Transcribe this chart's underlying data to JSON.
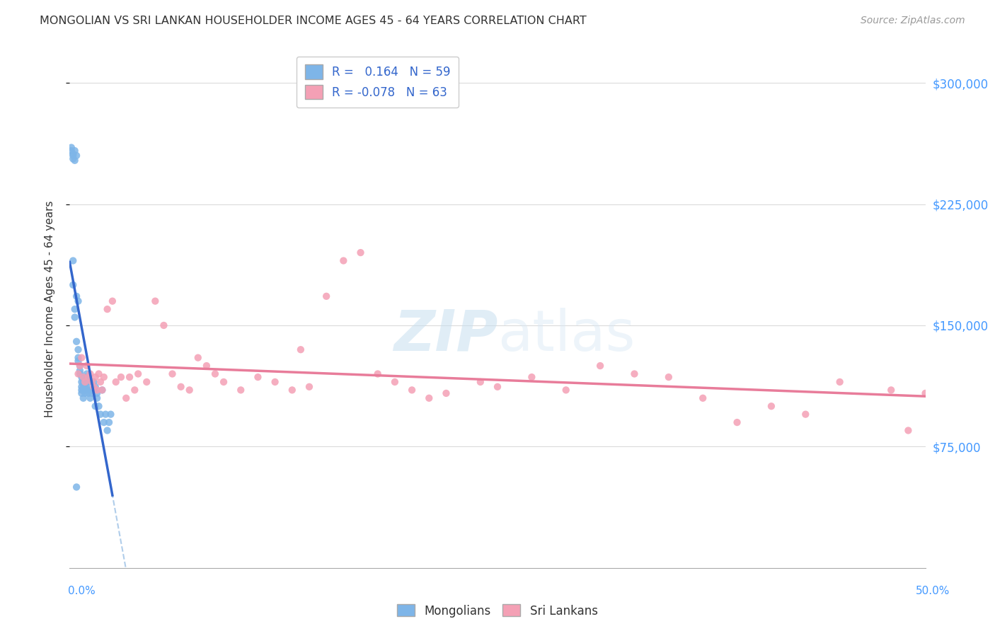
{
  "title": "MONGOLIAN VS SRI LANKAN HOUSEHOLDER INCOME AGES 45 - 64 YEARS CORRELATION CHART",
  "source": "Source: ZipAtlas.com",
  "ylabel": "Householder Income Ages 45 - 64 years",
  "xmin": 0.0,
  "xmax": 0.5,
  "ymin": 0,
  "ymax": 320000,
  "yticks": [
    75000,
    150000,
    225000,
    300000
  ],
  "ytick_labels": [
    "$75,000",
    "$150,000",
    "$225,000",
    "$300,000"
  ],
  "mongolian_R": 0.164,
  "mongolian_N": 59,
  "srilankan_R": -0.078,
  "srilankan_N": 63,
  "mongolian_color": "#7eb5e8",
  "srilankan_color": "#f4a0b5",
  "mongolian_line_color": "#3366cc",
  "srilankan_line_color": "#e87c9a",
  "dashed_line_color": "#a8c8e8",
  "watermark_zip": "ZIP",
  "watermark_atlas": "atlas",
  "background_color": "#ffffff",
  "grid_color": "#cccccc",
  "mongo_x": [
    0.001,
    0.001,
    0.002,
    0.002,
    0.002,
    0.003,
    0.003,
    0.004,
    0.004,
    0.004,
    0.005,
    0.005,
    0.005,
    0.005,
    0.006,
    0.006,
    0.006,
    0.007,
    0.007,
    0.007,
    0.007,
    0.007,
    0.008,
    0.008,
    0.008,
    0.008,
    0.009,
    0.009,
    0.009,
    0.01,
    0.01,
    0.01,
    0.01,
    0.011,
    0.011,
    0.011,
    0.012,
    0.012,
    0.013,
    0.013,
    0.014,
    0.014,
    0.015,
    0.015,
    0.016,
    0.016,
    0.017,
    0.018,
    0.019,
    0.02,
    0.021,
    0.022,
    0.023,
    0.024,
    0.002,
    0.002,
    0.003,
    0.003,
    0.004
  ],
  "mongo_y": [
    260000,
    258000,
    255000,
    253000,
    256000,
    252000,
    258000,
    255000,
    168000,
    140000,
    135000,
    130000,
    128000,
    165000,
    125000,
    120000,
    122000,
    118000,
    115000,
    112000,
    110000,
    108000,
    113000,
    110000,
    105000,
    115000,
    112000,
    108000,
    115000,
    118000,
    115000,
    112000,
    120000,
    110000,
    108000,
    115000,
    110000,
    105000,
    110000,
    108000,
    115000,
    110000,
    112000,
    100000,
    105000,
    108000,
    100000,
    95000,
    110000,
    90000,
    95000,
    85000,
    90000,
    95000,
    190000,
    175000,
    160000,
    155000,
    50000
  ],
  "sri_x": [
    0.005,
    0.006,
    0.007,
    0.008,
    0.009,
    0.01,
    0.011,
    0.012,
    0.013,
    0.014,
    0.015,
    0.016,
    0.017,
    0.018,
    0.019,
    0.02,
    0.022,
    0.025,
    0.027,
    0.03,
    0.033,
    0.035,
    0.038,
    0.04,
    0.045,
    0.05,
    0.055,
    0.06,
    0.065,
    0.07,
    0.08,
    0.085,
    0.09,
    0.1,
    0.11,
    0.12,
    0.13,
    0.14,
    0.15,
    0.16,
    0.17,
    0.18,
    0.19,
    0.2,
    0.21,
    0.22,
    0.24,
    0.25,
    0.27,
    0.29,
    0.31,
    0.33,
    0.35,
    0.37,
    0.39,
    0.41,
    0.43,
    0.45,
    0.48,
    0.49,
    0.5,
    0.135,
    0.075
  ],
  "sri_y": [
    120000,
    125000,
    130000,
    118000,
    115000,
    125000,
    118000,
    120000,
    115000,
    112000,
    118000,
    110000,
    120000,
    115000,
    110000,
    118000,
    160000,
    165000,
    115000,
    118000,
    105000,
    118000,
    110000,
    120000,
    115000,
    165000,
    150000,
    120000,
    112000,
    110000,
    125000,
    120000,
    115000,
    110000,
    118000,
    115000,
    110000,
    112000,
    168000,
    190000,
    195000,
    120000,
    115000,
    110000,
    105000,
    108000,
    115000,
    112000,
    118000,
    110000,
    125000,
    120000,
    118000,
    105000,
    90000,
    100000,
    95000,
    115000,
    110000,
    85000,
    108000,
    135000,
    130000
  ]
}
